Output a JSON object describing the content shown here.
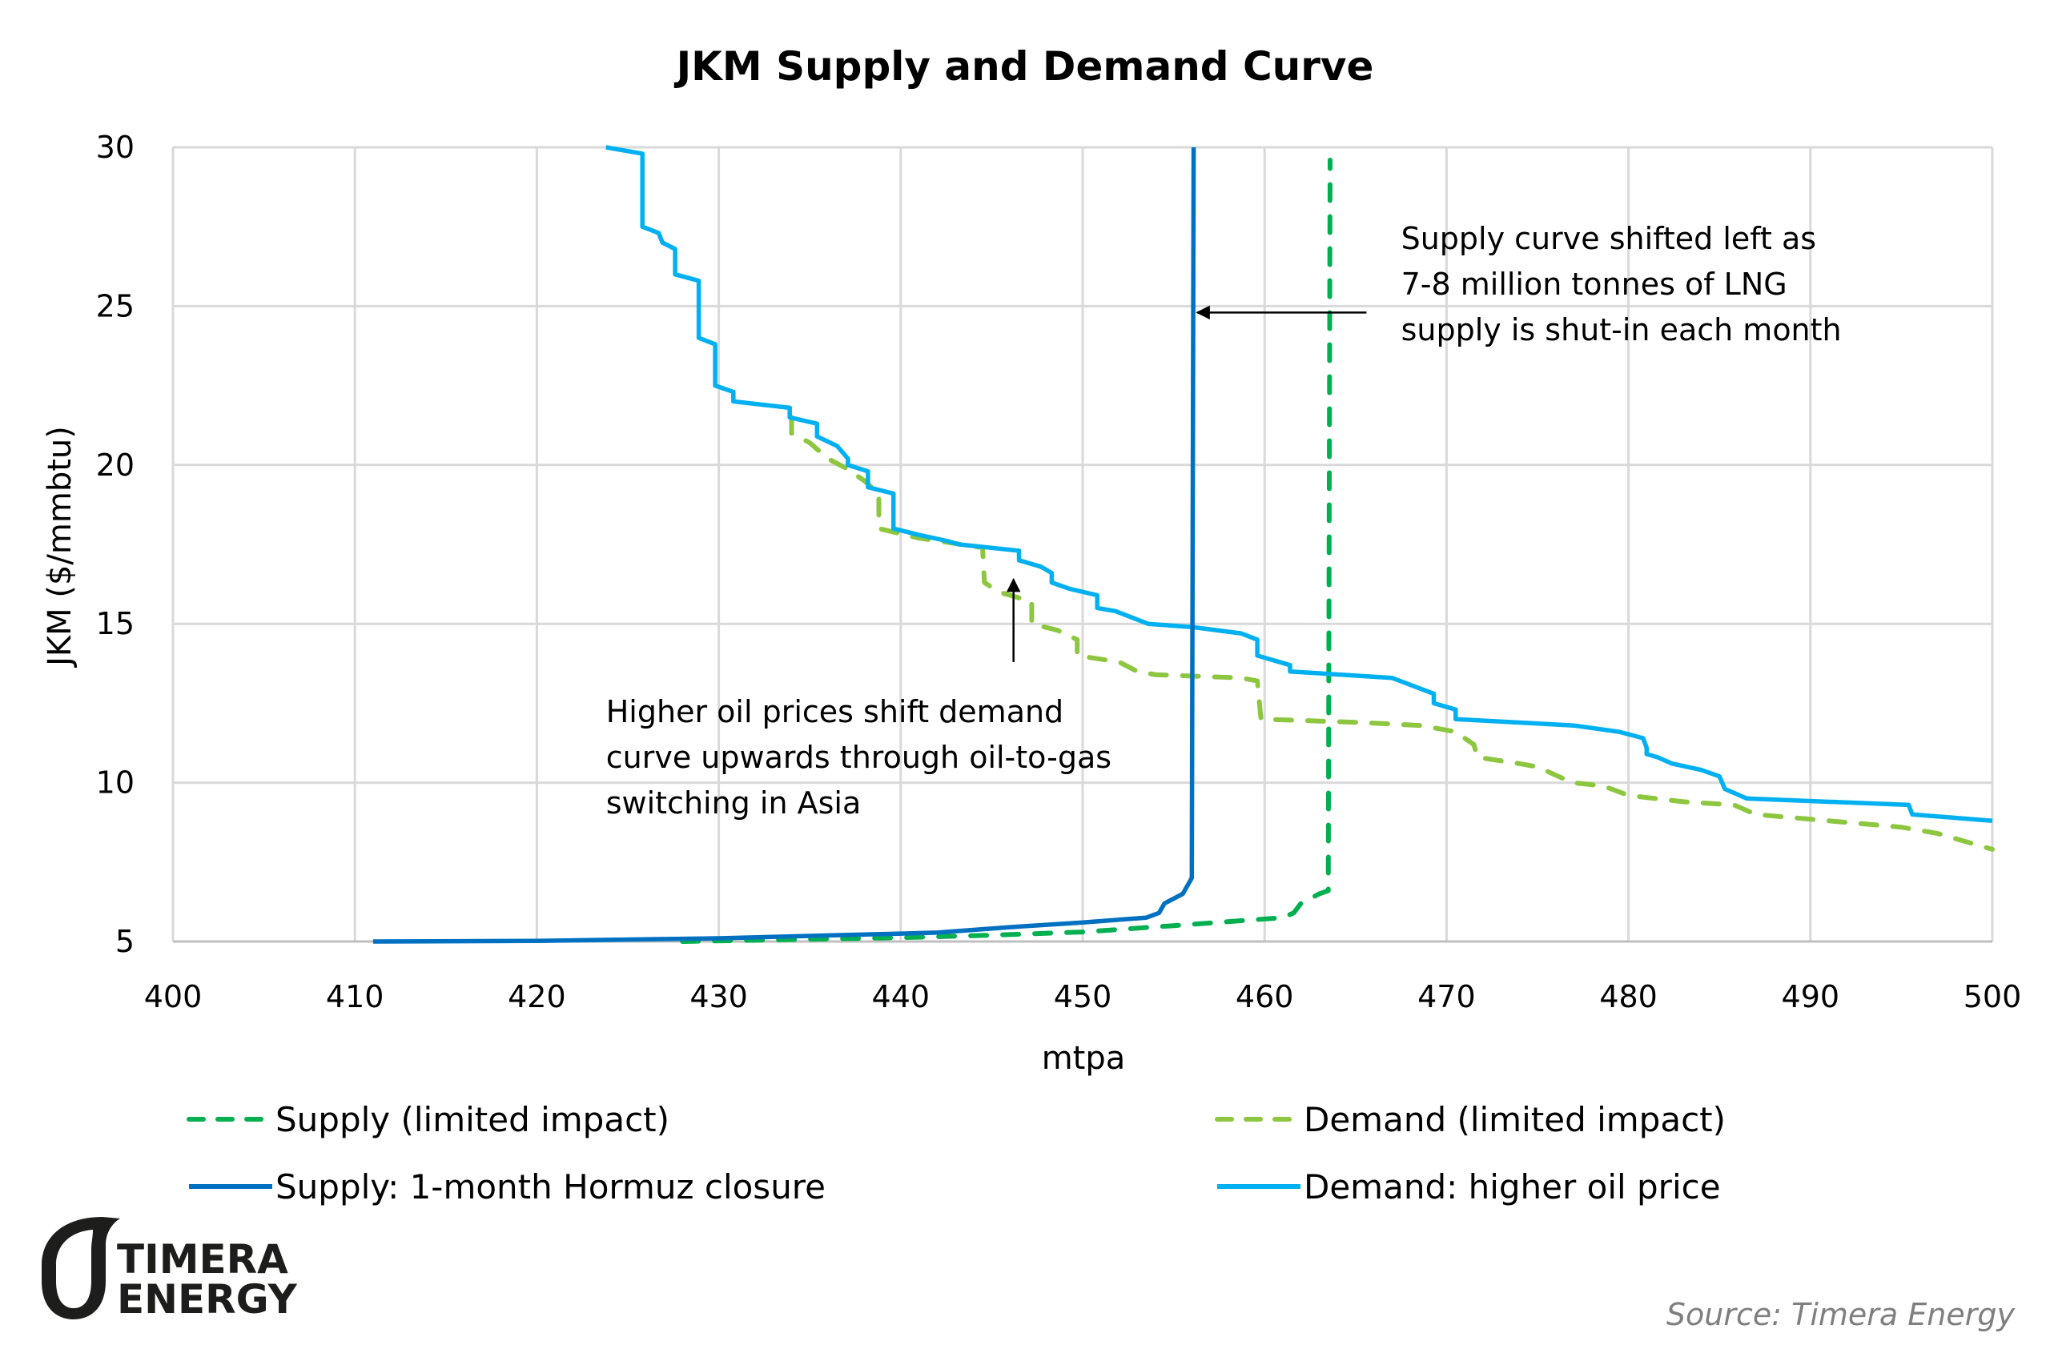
{
  "chart_data": {
    "type": "line",
    "title": "JKM Supply and Demand Curve",
    "xlabel": "mtpa",
    "ylabel": "JKM ($/mmbtu)",
    "xlim": [
      400,
      500
    ],
    "ylim": [
      5,
      30
    ],
    "xticks": [
      "400",
      "410",
      "420",
      "430",
      "440",
      "450",
      "460",
      "470",
      "480",
      "490",
      "500"
    ],
    "yticks": [
      "5",
      "10",
      "15",
      "20",
      "25",
      "30"
    ],
    "grid": true,
    "legend_position": "bottom",
    "series": [
      {
        "name": "Supply (limited impact)",
        "color": "#00b050",
        "style": "dashed",
        "points": [
          [
            428,
            5.0
          ],
          [
            433,
            5.05
          ],
          [
            440,
            5.12
          ],
          [
            445,
            5.2
          ],
          [
            450,
            5.3
          ],
          [
            455,
            5.5
          ],
          [
            461,
            5.75
          ],
          [
            461.6,
            5.9
          ],
          [
            462,
            6.2
          ],
          [
            463,
            6.5
          ],
          [
            463.5,
            6.6
          ],
          [
            463.6,
            29.6
          ]
        ]
      },
      {
        "name": "Demand (limited impact)",
        "color": "#8dc63f",
        "style": "dashed",
        "points": [
          [
            434,
            21.5
          ],
          [
            434,
            21
          ],
          [
            435,
            20.7
          ],
          [
            436,
            20.2
          ],
          [
            437,
            19.9
          ],
          [
            438,
            19.5
          ],
          [
            438.8,
            19.1
          ],
          [
            438.8,
            18
          ],
          [
            441,
            17.7
          ],
          [
            444.5,
            17.4
          ],
          [
            444.6,
            16.3
          ],
          [
            445.4,
            16
          ],
          [
            447.2,
            15.7
          ],
          [
            447.2,
            15
          ],
          [
            448.6,
            14.8
          ],
          [
            449.7,
            14.5
          ],
          [
            449.7,
            14
          ],
          [
            452,
            13.8
          ],
          [
            453,
            13.5
          ],
          [
            454,
            13.4
          ],
          [
            458.7,
            13.3
          ],
          [
            459.6,
            13.2
          ],
          [
            459.8,
            12
          ],
          [
            465,
            11.9
          ],
          [
            468.6,
            11.8
          ],
          [
            470.5,
            11.6
          ],
          [
            471.5,
            11.2
          ],
          [
            471.7,
            10.8
          ],
          [
            474,
            10.6
          ],
          [
            475,
            10.5
          ],
          [
            476.9,
            10
          ],
          [
            478.6,
            9.9
          ],
          [
            480,
            9.6
          ],
          [
            483,
            9.4
          ],
          [
            485.8,
            9.3
          ],
          [
            487,
            9.0
          ],
          [
            495,
            8.6
          ],
          [
            497,
            8.4
          ],
          [
            500,
            7.9
          ]
        ]
      },
      {
        "name": "Supply: 1-month Hormuz closure",
        "color": "#0070c0",
        "style": "solid",
        "points": [
          [
            411,
            5.0
          ],
          [
            420,
            5.02
          ],
          [
            430,
            5.1
          ],
          [
            440,
            5.25
          ],
          [
            442,
            5.28
          ],
          [
            446,
            5.45
          ],
          [
            450,
            5.6
          ],
          [
            453.5,
            5.75
          ],
          [
            454.2,
            5.9
          ],
          [
            454.5,
            6.2
          ],
          [
            455.5,
            6.5
          ],
          [
            456,
            7.0
          ],
          [
            456.1,
            30
          ]
        ]
      },
      {
        "name": "Demand: higher oil price",
        "color": "#00b0f0",
        "style": "solid",
        "points": [
          [
            423.8,
            30
          ],
          [
            425.8,
            29.8
          ],
          [
            425.8,
            27.5
          ],
          [
            426.7,
            27.3
          ],
          [
            426.9,
            27
          ],
          [
            427.6,
            26.8
          ],
          [
            427.6,
            26
          ],
          [
            428.9,
            25.8
          ],
          [
            428.9,
            24
          ],
          [
            429.8,
            23.8
          ],
          [
            429.8,
            22.5
          ],
          [
            430.8,
            22.3
          ],
          [
            430.8,
            22
          ],
          [
            433.9,
            21.8
          ],
          [
            433.9,
            21.5
          ],
          [
            435.4,
            21.3
          ],
          [
            435.4,
            20.9
          ],
          [
            436.5,
            20.6
          ],
          [
            436.8,
            20.4
          ],
          [
            437.1,
            20.2
          ],
          [
            437.1,
            20
          ],
          [
            438.2,
            19.8
          ],
          [
            438.2,
            19.3
          ],
          [
            439.6,
            19.1
          ],
          [
            439.6,
            18
          ],
          [
            441,
            17.8
          ],
          [
            442.6,
            17.6
          ],
          [
            443.2,
            17.5
          ],
          [
            446.5,
            17.3
          ],
          [
            446.5,
            17
          ],
          [
            447.7,
            16.8
          ],
          [
            448.3,
            16.6
          ],
          [
            448.3,
            16.3
          ],
          [
            449.3,
            16.1
          ],
          [
            450.8,
            15.9
          ],
          [
            450.8,
            15.5
          ],
          [
            451.8,
            15.4
          ],
          [
            453.6,
            15.0
          ],
          [
            456,
            14.9
          ],
          [
            458.7,
            14.7
          ],
          [
            459.6,
            14.5
          ],
          [
            459.6,
            14
          ],
          [
            460.8,
            13.8
          ],
          [
            461.4,
            13.7
          ],
          [
            461.4,
            13.5
          ],
          [
            467,
            13.3
          ],
          [
            469.3,
            12.8
          ],
          [
            469.3,
            12.5
          ],
          [
            470.5,
            12.3
          ],
          [
            470.5,
            12
          ],
          [
            477,
            11.8
          ],
          [
            479.5,
            11.6
          ],
          [
            480.8,
            11.4
          ],
          [
            481,
            11.1
          ],
          [
            481,
            10.9
          ],
          [
            481.6,
            10.8
          ],
          [
            482.4,
            10.6
          ],
          [
            484,
            10.4
          ],
          [
            485,
            10.2
          ],
          [
            485.3,
            9.8
          ],
          [
            486.5,
            9.5
          ],
          [
            495.4,
            9.3
          ],
          [
            495.6,
            9.0
          ],
          [
            500,
            8.8
          ]
        ]
      }
    ],
    "annotations": [
      {
        "id": "supply-shift",
        "lines": [
          "Supply curve shifted left as",
          "7-8 million tonnes of LNG",
          "supply is shut-in each month"
        ],
        "text_anchor": [
          467.5,
          26.8
        ],
        "arrow_from": [
          465.6,
          24.8
        ],
        "arrow_to": [
          456.3,
          24.8
        ]
      },
      {
        "id": "demand-shift",
        "lines": [
          "Higher oil prices shift demand",
          "curve upwards through oil-to-gas",
          "switching in Asia"
        ],
        "text_anchor": [
          423.8,
          11.9
        ],
        "arrow_from": [
          446.2,
          13.8
        ],
        "arrow_to": [
          446.2,
          16.4
        ]
      }
    ]
  },
  "source": "Source: Timera Energy",
  "logo": {
    "line1": "TIMERA",
    "line2": "ENERGY"
  }
}
